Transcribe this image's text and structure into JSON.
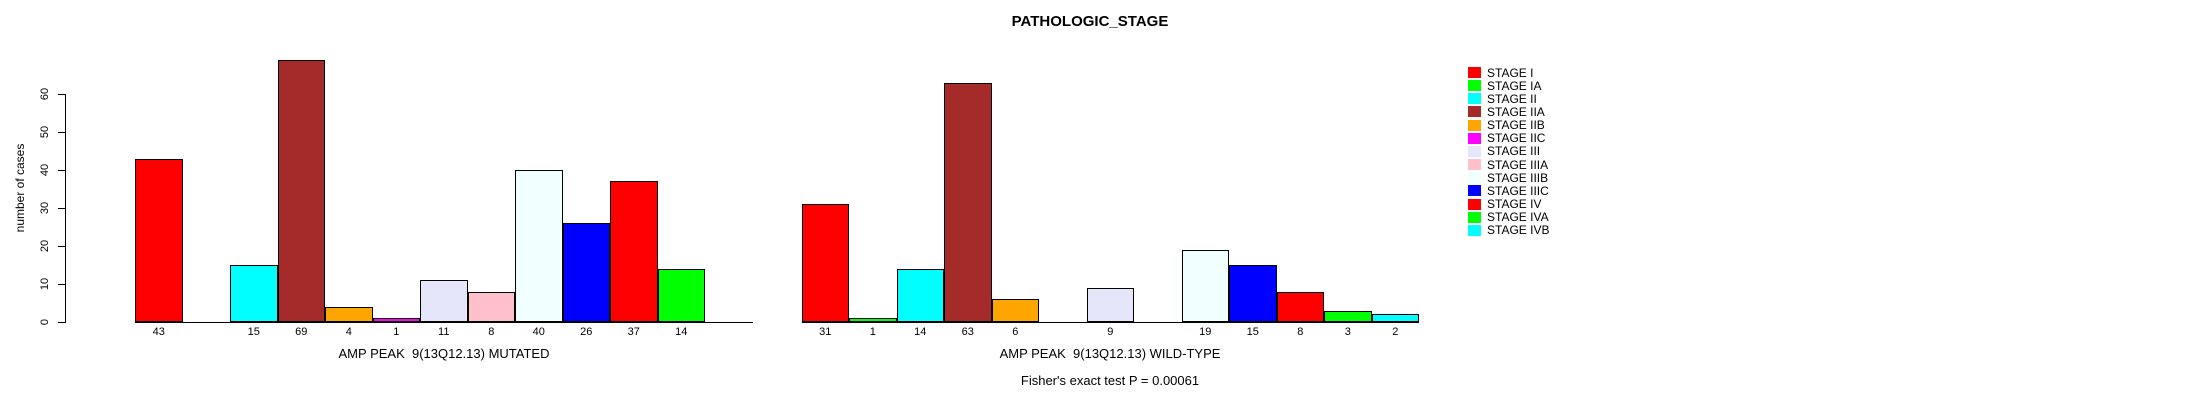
{
  "title": "PATHOLOGIC_STAGE",
  "y_axis": {
    "label": "number of cases",
    "ticks": [
      0,
      10,
      20,
      30,
      40,
      50,
      60
    ]
  },
  "footer": {
    "fisher_note": "Fisher's exact test P = 0.00061"
  },
  "legend": {
    "position": "right",
    "items": [
      {
        "label": "STAGE I",
        "color": "#FF0000"
      },
      {
        "label": "STAGE IA",
        "color": "#00FF00"
      },
      {
        "label": "STAGE II",
        "color": "#00FFFF"
      },
      {
        "label": "STAGE IIA",
        "color": "#A52A2A"
      },
      {
        "label": "STAGE IIB",
        "color": "#FFA500"
      },
      {
        "label": "STAGE IIC",
        "color": "#FF00FF"
      },
      {
        "label": "STAGE III",
        "color": "#E6E6FA"
      },
      {
        "label": "STAGE IIIA",
        "color": "#FFC0CB"
      },
      {
        "label": "STAGE IIIB",
        "color": "#F0FFFF"
      },
      {
        "label": "STAGE IIIC",
        "color": "#0000FF"
      },
      {
        "label": "STAGE IV",
        "color": "#FF0000"
      },
      {
        "label": "STAGE IVA",
        "color": "#00FF00"
      },
      {
        "label": "STAGE IVB",
        "color": "#00FFFF"
      }
    ]
  },
  "chart_data": [
    {
      "type": "bar",
      "group": "mutated",
      "xlabel": "AMP PEAK  9(13Q12.13) MUTATED",
      "ylabel": "number of cases",
      "categories": [
        "STAGE I",
        "STAGE IA",
        "STAGE II",
        "STAGE IIA",
        "STAGE IIB",
        "STAGE IIC",
        "STAGE III",
        "STAGE IIIA",
        "STAGE IIIB",
        "STAGE IIIC",
        "STAGE IV",
        "STAGE IVA",
        "STAGE IVB"
      ],
      "values": [
        43,
        0,
        15,
        69,
        4,
        1,
        11,
        8,
        40,
        26,
        37,
        14,
        0
      ],
      "colors": [
        "#FF0000",
        "#00FF00",
        "#00FFFF",
        "#A52A2A",
        "#FFA500",
        "#FF00FF",
        "#E6E6FA",
        "#FFC0CB",
        "#F0FFFF",
        "#0000FF",
        "#FF0000",
        "#00FF00",
        "#00FFFF"
      ],
      "ylim": [
        0,
        69
      ],
      "grid": false
    },
    {
      "type": "bar",
      "group": "wild-type",
      "xlabel": "AMP PEAK  9(13Q12.13) WILD-TYPE",
      "ylabel": "number of cases",
      "categories": [
        "STAGE I",
        "STAGE IA",
        "STAGE II",
        "STAGE IIA",
        "STAGE IIB",
        "STAGE IIC",
        "STAGE III",
        "STAGE IIIA",
        "STAGE IIIB",
        "STAGE IIIC",
        "STAGE IV",
        "STAGE IVA",
        "STAGE IVB"
      ],
      "values": [
        31,
        1,
        14,
        63,
        6,
        0,
        9,
        0,
        19,
        15,
        8,
        3,
        2
      ],
      "colors": [
        "#FF0000",
        "#00FF00",
        "#00FFFF",
        "#A52A2A",
        "#FFA500",
        "#FF00FF",
        "#E6E6FA",
        "#FFC0CB",
        "#F0FFFF",
        "#0000FF",
        "#FF0000",
        "#00FF00",
        "#00FFFF"
      ],
      "ylim": [
        0,
        69
      ],
      "grid": false
    }
  ]
}
